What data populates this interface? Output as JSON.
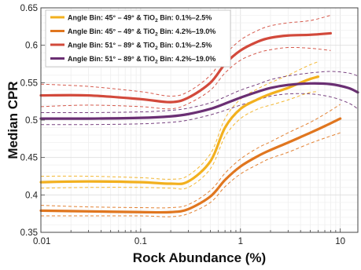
{
  "chart_data": {
    "type": "line",
    "xscale": "log",
    "xlim": [
      0.01,
      15
    ],
    "ylim": [
      0.35,
      0.65
    ],
    "xlabel": "Rock Abundance (%)",
    "ylabel": "Median CPR",
    "grid": true,
    "legend_position": "top-left",
    "x_ticks": [
      {
        "value": 0.01,
        "label": "0.01"
      },
      {
        "value": 0.1,
        "label": "0.1"
      },
      {
        "value": 1,
        "label": "1"
      },
      {
        "value": 10,
        "label": "10"
      }
    ],
    "y_ticks": [
      {
        "value": 0.35,
        "label": "0.35"
      },
      {
        "value": 0.4,
        "label": "0.4"
      },
      {
        "value": 0.45,
        "label": "0.45"
      },
      {
        "value": 0.5,
        "label": "0.5"
      },
      {
        "value": 0.55,
        "label": "0.55"
      },
      {
        "value": 0.6,
        "label": "0.6"
      },
      {
        "value": 0.65,
        "label": "0.65"
      }
    ],
    "series": [
      {
        "name": "Angle Bin: 45° – 49° & TiO2 Bin: 0.1%–2.5%",
        "legend_parts": [
          "Angle Bin: 45° – 49° & TiO",
          "2",
          " Bin: 0.1%–2.5%"
        ],
        "color": "#f2b01e",
        "x": [
          0.01,
          0.03,
          0.1,
          0.2,
          0.3,
          0.5,
          0.7,
          1,
          1.5,
          2,
          3,
          4,
          5,
          6
        ],
        "y": [
          0.417,
          0.418,
          0.417,
          0.415,
          0.418,
          0.445,
          0.49,
          0.515,
          0.528,
          0.535,
          0.543,
          0.55,
          0.555,
          0.558
        ],
        "ci_upper": [
          0.425,
          0.425,
          0.423,
          0.421,
          0.426,
          0.455,
          0.502,
          0.528,
          0.542,
          0.55,
          0.56,
          0.568,
          0.574,
          0.578
        ],
        "ci_lower": [
          0.409,
          0.41,
          0.41,
          0.409,
          0.41,
          0.435,
          0.478,
          0.502,
          0.515,
          0.52,
          0.527,
          0.533,
          0.537,
          0.538
        ]
      },
      {
        "name": "Angle Bin: 45° – 49° & TiO2 Bin: 4.2%–19.0%",
        "legend_parts": [
          "Angle Bin: 45° – 49° & TiO",
          "2",
          " Bin: 4.2%–19.0%"
        ],
        "color": "#e0761f",
        "x": [
          0.01,
          0.03,
          0.1,
          0.2,
          0.3,
          0.5,
          0.7,
          1,
          1.5,
          2,
          3,
          5,
          7,
          10
        ],
        "y": [
          0.379,
          0.378,
          0.377,
          0.377,
          0.381,
          0.398,
          0.42,
          0.438,
          0.452,
          0.46,
          0.47,
          0.483,
          0.492,
          0.502
        ],
        "ci_upper": [
          0.386,
          0.384,
          0.383,
          0.383,
          0.387,
          0.406,
          0.429,
          0.448,
          0.463,
          0.471,
          0.483,
          0.497,
          0.508,
          0.521
        ],
        "ci_lower": [
          0.372,
          0.372,
          0.372,
          0.371,
          0.375,
          0.39,
          0.411,
          0.428,
          0.441,
          0.449,
          0.457,
          0.469,
          0.476,
          0.483
        ]
      },
      {
        "name": "Angle Bin: 51° – 89° & TiO2 Bin: 0.1%–2.5%",
        "legend_parts": [
          "Angle Bin: 51° – 89° & TiO",
          "2",
          " Bin: 0.1%–2.5%"
        ],
        "color": "#d2493b",
        "x": [
          0.01,
          0.03,
          0.1,
          0.2,
          0.3,
          0.5,
          0.7,
          1,
          1.5,
          2,
          3,
          5,
          8
        ],
        "y": [
          0.533,
          0.533,
          0.528,
          0.524,
          0.53,
          0.55,
          0.575,
          0.593,
          0.605,
          0.61,
          0.613,
          0.614,
          0.616
        ],
        "ci_upper": [
          0.548,
          0.545,
          0.538,
          0.532,
          0.538,
          0.56,
          0.587,
          0.607,
          0.62,
          0.626,
          0.63,
          0.633,
          0.64
        ],
        "ci_lower": [
          0.518,
          0.52,
          0.518,
          0.515,
          0.522,
          0.54,
          0.563,
          0.58,
          0.59,
          0.594,
          0.597,
          0.596,
          0.593
        ]
      },
      {
        "name": "Angle Bin: 51° – 89° & TiO2 Bin: 4.2%–19.0%",
        "legend_parts": [
          "Angle Bin: 51° – 89° & TiO",
          "2",
          " Bin: 4.2%–19.0%"
        ],
        "color": "#6a2f73",
        "x": [
          0.01,
          0.03,
          0.1,
          0.2,
          0.3,
          0.5,
          0.7,
          1,
          1.5,
          2,
          3,
          5,
          8,
          12,
          15
        ],
        "y": [
          0.502,
          0.502,
          0.503,
          0.505,
          0.508,
          0.515,
          0.522,
          0.53,
          0.538,
          0.543,
          0.547,
          0.549,
          0.548,
          0.543,
          0.537
        ],
        "ci_upper": [
          0.51,
          0.51,
          0.511,
          0.513,
          0.516,
          0.523,
          0.531,
          0.54,
          0.548,
          0.554,
          0.559,
          0.563,
          0.565,
          0.563,
          0.559
        ],
        "ci_lower": [
          0.494,
          0.494,
          0.495,
          0.497,
          0.5,
          0.507,
          0.513,
          0.52,
          0.527,
          0.532,
          0.535,
          0.535,
          0.531,
          0.523,
          0.515
        ]
      }
    ]
  }
}
